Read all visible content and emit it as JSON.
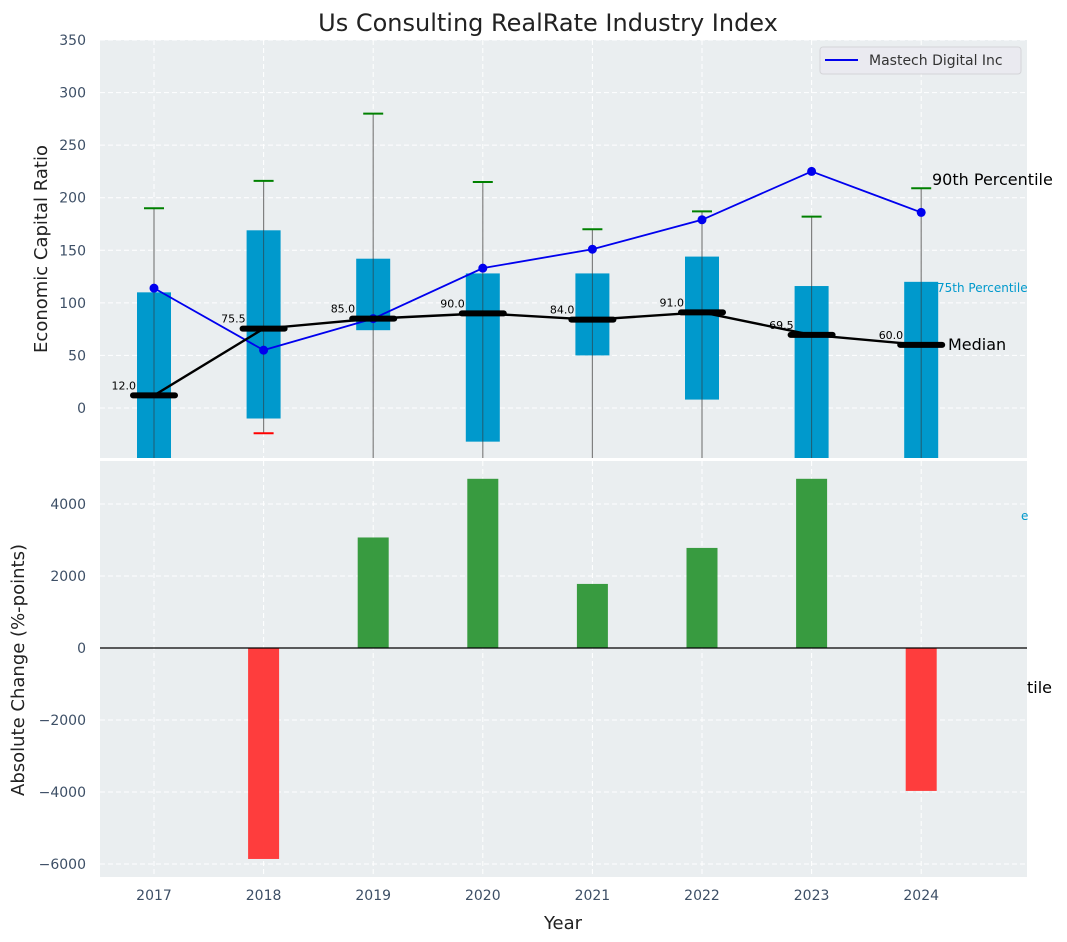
{
  "chart_data": [
    {
      "panel": "top",
      "type": "box",
      "title": "Us Consulting RealRate Industry Index",
      "xlabel": "",
      "ylabel": "Economic Capital Ratio",
      "ylim": [
        -48,
        350
      ],
      "yticks": [
        0,
        50,
        100,
        150,
        200,
        250,
        300,
        350
      ],
      "grid": true,
      "categories": [
        "2017",
        "2018",
        "2019",
        "2020",
        "2021",
        "2022",
        "2023",
        "2024"
      ],
      "boxes": {
        "q1": [
          -60,
          -10,
          74,
          -32,
          50,
          8,
          -60,
          -60
        ],
        "q3": [
          110,
          169,
          142,
          128,
          128,
          144,
          116,
          120
        ],
        "whisker_low": [
          null,
          -24,
          null,
          null,
          null,
          null,
          null,
          null
        ],
        "whisker_high": [
          190,
          216,
          280,
          215,
          170,
          187,
          182,
          209
        ],
        "color": "#0099cc",
        "whisker_high_color": "#008000",
        "whisker_low_color": "#ff0000"
      },
      "median": {
        "values": [
          12.0,
          75.5,
          85.0,
          90.0,
          84.0,
          91.0,
          69.5,
          60.0
        ],
        "labels": [
          "12.0",
          "75.5",
          "85.0",
          "90.0",
          "84.0",
          "91.0",
          "69.5",
          "60.0"
        ],
        "color": "#000000"
      },
      "series": [
        {
          "name": "Mastech Digital Inc",
          "values": [
            114,
            55,
            85,
            133,
            151,
            179,
            225,
            186
          ],
          "color": "#0000ee"
        }
      ],
      "legend": {
        "position": "top-right",
        "entries": [
          "Mastech Digital Inc"
        ]
      },
      "annotations": [
        {
          "text": "90th Percentile",
          "color": "#000000"
        },
        {
          "text": "75th Percentile",
          "color": "#0099cc"
        },
        {
          "text": "Median",
          "color": "#000000"
        }
      ]
    },
    {
      "panel": "bottom",
      "type": "bar",
      "xlabel": "Year",
      "ylabel": "Absolute Change (%-points)",
      "ylim": [
        -6400,
        5000
      ],
      "yticks": [
        -6000,
        -4000,
        -2000,
        0,
        2000,
        4000
      ],
      "grid": true,
      "categories": [
        "2017",
        "2018",
        "2019",
        "2020",
        "2021",
        "2022",
        "2023",
        "2024"
      ],
      "values": [
        0,
        -5860,
        3070,
        4700,
        1780,
        2780,
        4700,
        -3970
      ],
      "positive_color": "#2e9636",
      "negative_color": "#ff3333",
      "hidden_annotation_fragments": [
        "e",
        "tile"
      ]
    }
  ],
  "colors": {
    "axes_bg": "#eaeef0",
    "grid": "#ffffff",
    "tick_text": "#3d4f66",
    "label_text": "#222222"
  }
}
